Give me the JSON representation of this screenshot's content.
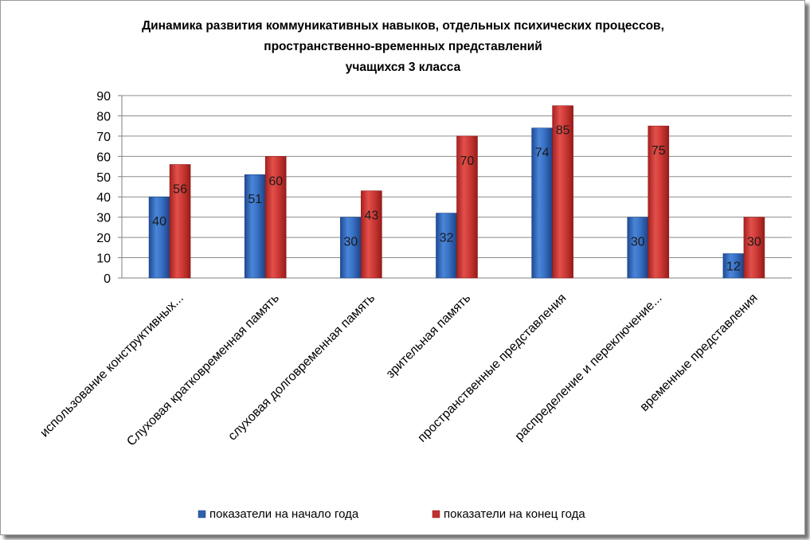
{
  "chart_data": {
    "type": "bar",
    "title_lines": [
      "Динамика развития коммуникативных навыков, отдельных психических процессов,",
      "пространственно-временных представлений",
      "учащихся  3  класса"
    ],
    "categories": [
      "использование конструктивных...",
      "Слуховая кратковременная память",
      "слуховая долговременная память",
      "зрительная память",
      "пространственные представления",
      "распределение и переключение...",
      "временные представления"
    ],
    "series": [
      {
        "name": "показатели на начало года",
        "values": [
          40,
          51,
          30,
          32,
          74,
          30,
          12
        ],
        "color": "#2f5fad"
      },
      {
        "name": "показатели на конец года",
        "values": [
          56,
          60,
          43,
          70,
          85,
          75,
          30
        ],
        "color": "#c0322f"
      }
    ],
    "ylim": [
      0,
      90
    ],
    "yticks": [
      0,
      10,
      20,
      30,
      40,
      50,
      60,
      70,
      80,
      90
    ],
    "grid": true,
    "legend_position": "bottom",
    "data_labels": true
  }
}
